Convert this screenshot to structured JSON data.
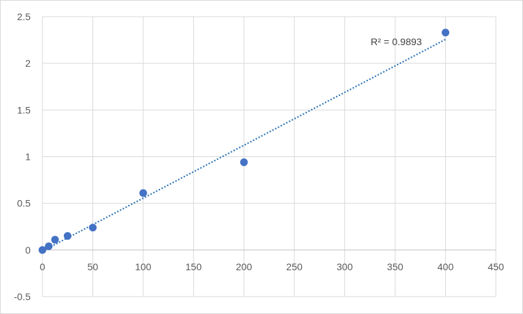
{
  "chart_data": {
    "type": "scatter",
    "title": "",
    "xlabel": "",
    "ylabel": "",
    "xlim": [
      0,
      450
    ],
    "ylim": [
      -0.5,
      2.5
    ],
    "x_ticks": [
      "0",
      "50",
      "100",
      "150",
      "200",
      "250",
      "300",
      "350",
      "400",
      "450"
    ],
    "y_ticks": [
      "-0.5",
      "0",
      "0.5",
      "1",
      "1.5",
      "2",
      "2.5"
    ],
    "grid": true,
    "legend": "none",
    "series": [
      {
        "x": [
          0,
          6.25,
          12.5,
          25,
          50,
          100,
          200,
          400
        ],
        "y": [
          0.0,
          0.04,
          0.11,
          0.15,
          0.24,
          0.61,
          0.94,
          2.33
        ],
        "color": "#4472c4"
      }
    ],
    "trendline": {
      "type": "linear",
      "x_range": [
        0,
        400
      ],
      "slope": 0.00567,
      "intercept": -0.012,
      "color": "#2e75b6",
      "style": "dotted",
      "label": "R² = 0.9893"
    }
  }
}
